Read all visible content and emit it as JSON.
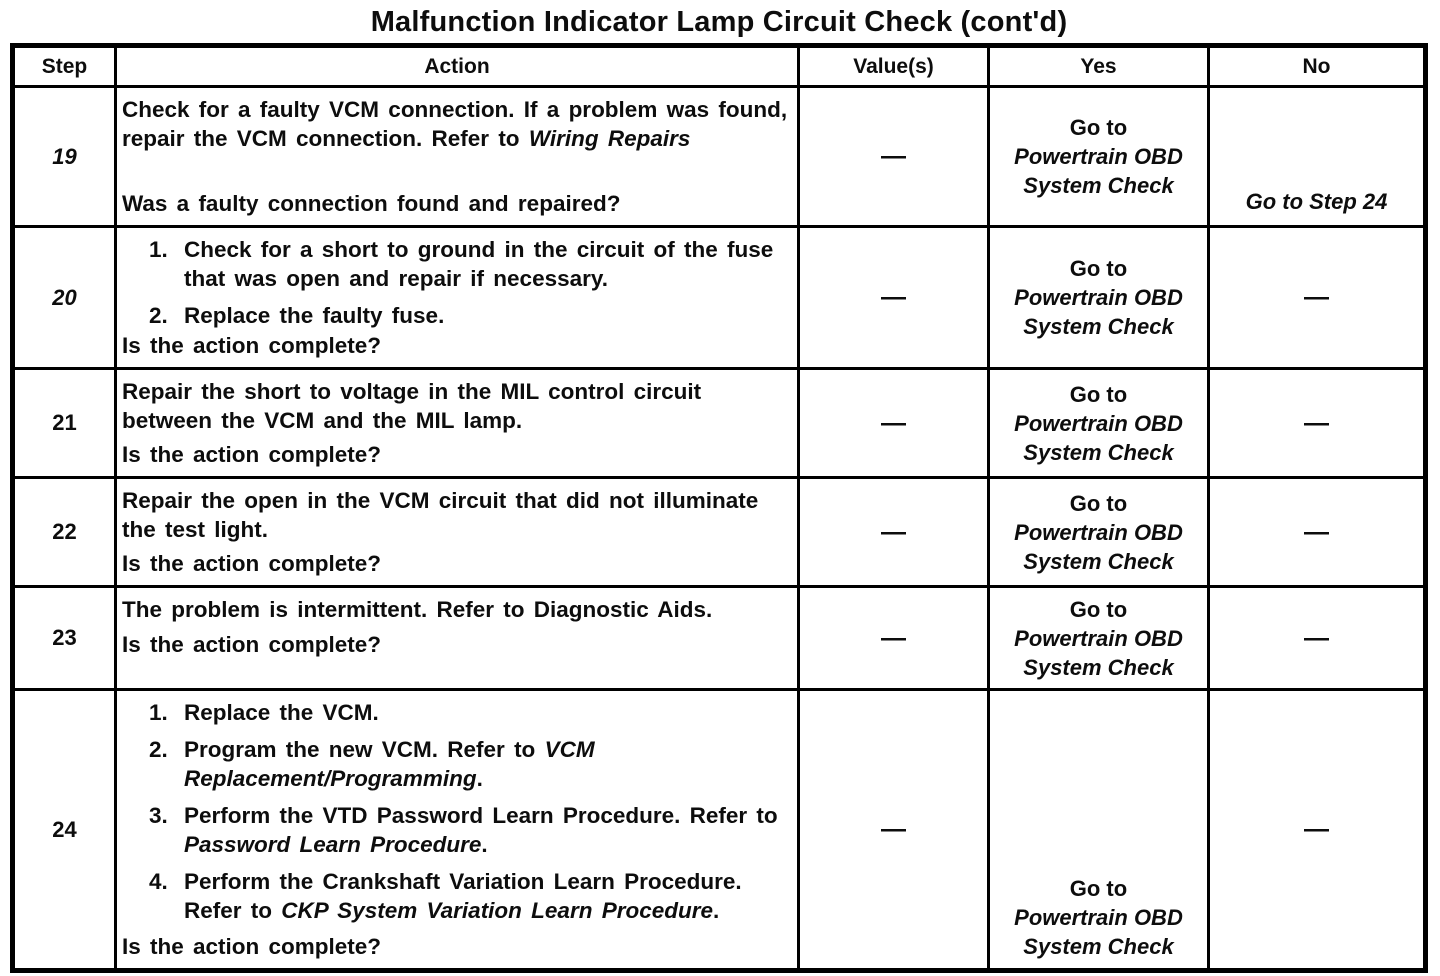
{
  "title": "Malfunction Indicator Lamp Circuit Check (cont'd)",
  "colors": {
    "ink": "#0d0d0d",
    "paper": "#ffffff",
    "border": "#000000"
  },
  "table": {
    "headers": {
      "step": "Step",
      "action": "Action",
      "values": "Value(s)",
      "yes": "Yes",
      "no": "No"
    },
    "goto_ref": {
      "go_to": "Go to",
      "ref_line1": "Powertrain OBD",
      "ref_line2": "System Check"
    },
    "rows": [
      {
        "step": "19",
        "action": {
          "text": "Check for a faulty VCM connection. If a problem was found, repair the VCM connection. Refer to ",
          "ref": "Wiring Repairs",
          "question": "Was a faulty connection found and repaired?"
        },
        "value": "—",
        "no": "Go to Step 24"
      },
      {
        "step": "20",
        "action": {
          "items": [
            {
              "num": "1.",
              "text": "Check for a short to ground in the circuit of the fuse that was open and repair if necessary."
            },
            {
              "num": "2.",
              "text": "Replace the faulty fuse."
            }
          ],
          "question": "Is the action complete?"
        },
        "value": "—",
        "no": "—"
      },
      {
        "step": "21",
        "action": {
          "text": "Repair the short to voltage in the MIL control circuit between the VCM and the MIL lamp.",
          "question": "Is the action complete?"
        },
        "value": "—",
        "no": "—"
      },
      {
        "step": "22",
        "action": {
          "text": "Repair the open in the VCM circuit that did not illuminate the test light.",
          "question": "Is the action complete?"
        },
        "value": "—",
        "no": "—"
      },
      {
        "step": "23",
        "action": {
          "text": "The problem is intermittent. Refer to Diagnostic Aids.",
          "question": "Is the action complete?"
        },
        "value": "—",
        "no": "—"
      },
      {
        "step": "24",
        "action": {
          "items": [
            {
              "num": "1.",
              "text": "Replace the VCM."
            },
            {
              "num": "2.",
              "text": "Program the new VCM. Refer to ",
              "ref": "VCM Replacement/Programming",
              "tail": "."
            },
            {
              "num": "3.",
              "text": "Perform the VTD Password Learn Procedure. Refer to ",
              "ref": "Password Learn Procedure",
              "tail": "."
            },
            {
              "num": "4.",
              "text": "Perform the Crankshaft Variation Learn Procedure. Refer to ",
              "ref": "CKP System Variation Learn Procedure",
              "tail": "."
            }
          ],
          "question": "Is the action complete?"
        },
        "value": "—",
        "no": "—"
      }
    ]
  }
}
